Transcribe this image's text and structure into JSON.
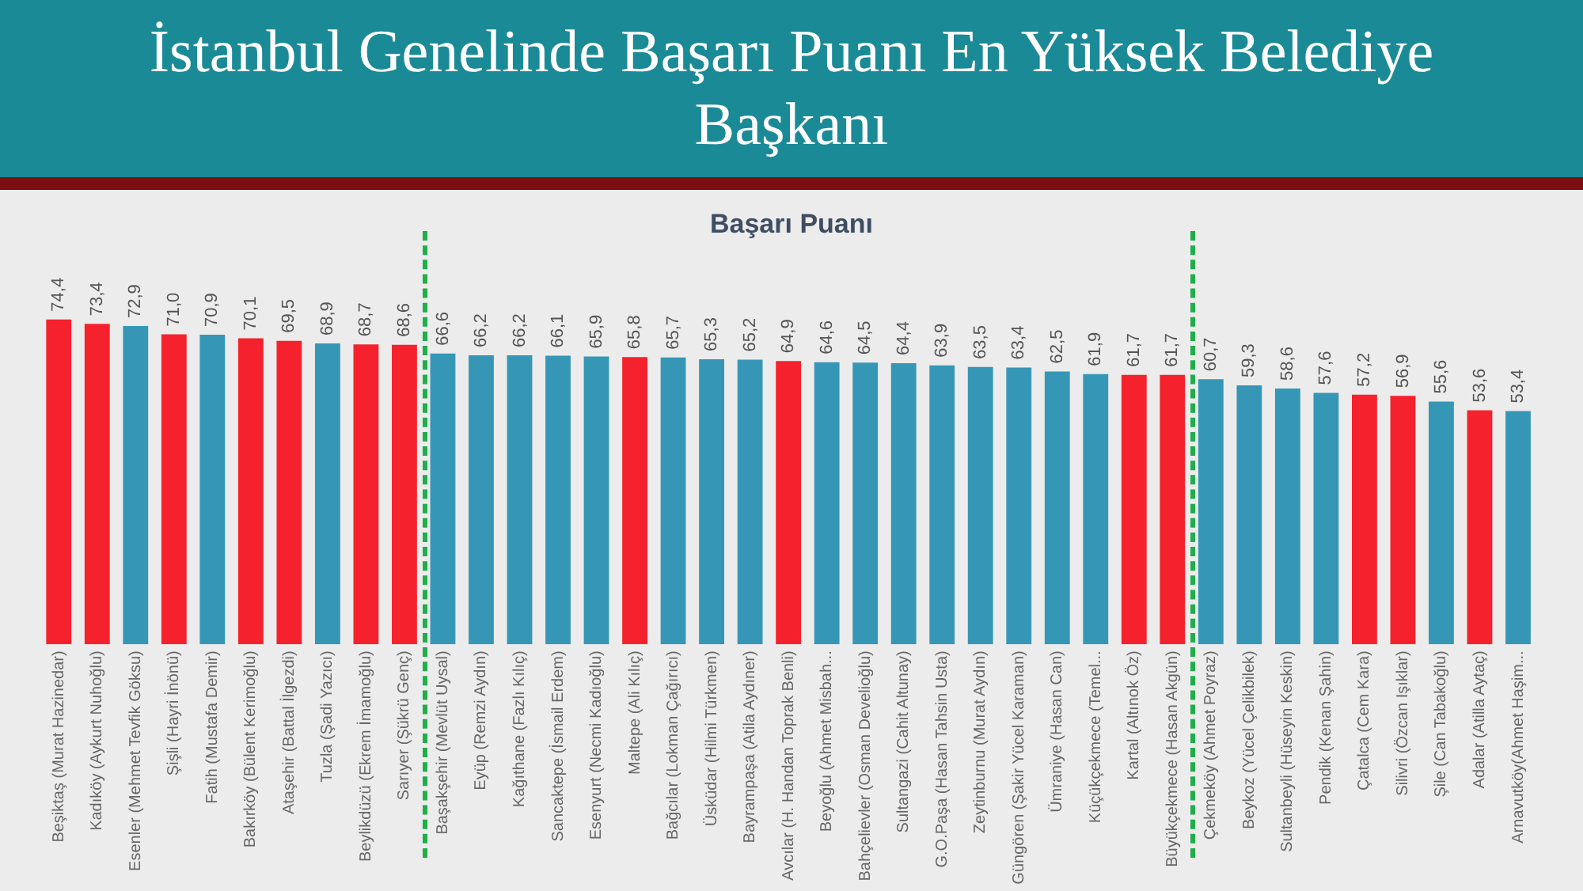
{
  "chart_data": {
    "type": "bar",
    "title": "İstanbul Genelinde Başarı Puanı En Yüksek Belediye Başkanı",
    "subtitle": "Başarı Puanı",
    "categories": [
      "Beşiktaş (Murat Hazinedar)",
      "Kadıköy (Aykurt Nuhoğlu)",
      "Esenler (Mehmet Tevfik Göksu)",
      "Şişli (Hayri İnönü)",
      "Fatih (Mustafa Demir)",
      "Bakırköy (Bülent Kerimoğlu)",
      "Ataşehir (Battal İlgezdi)",
      "Tuzla (Şadi Yazıcı)",
      "Beylikdüzü (Ekrem İmamoğlu)",
      "Sarıyer (Şükrü Genç)",
      "Başakşehir (Mevlüt Uysal)",
      "Eyüp (Remzi Aydın)",
      "Kağıthane (Fazlı Kılıç)",
      "Sancaktepe (İsmail Erdem)",
      "Esenyurt (Necmi Kadıoğlu)",
      "Maltepe (Ali Kılıç)",
      "Bağcılar (Lokman Çağırıcı)",
      "Üsküdar (Hilmi Türkmen)",
      "Bayrampaşa (Atila Aydıner)",
      "Avcılar (H. Handan Toprak Benli)",
      "Beyoğlu (Ahmet Misbah...",
      "Bahçelievler (Osman Develioğlu)",
      "Sultangazi (Cahit Altunay)",
      "G.O.Paşa (Hasan Tahsin Usta)",
      "Zeytinburnu (Murat Aydın)",
      "Güngören (Şakir Yücel Karaman)",
      "Ümraniye (Hasan Can)",
      "Küçükçekmece (Temel...",
      "Kartal (Altınok Öz)",
      "Büyükçekmece (Hasan Akgün)",
      "Çekmeköy (Ahmet Poyraz)",
      "Beykoz (Yücel Çelikbilek)",
      "Sultanbeyli (Hüseyin Keskin)",
      "Pendik (Kenan Şahin)",
      "Çatalca (Cem Kara)",
      "Silivri (Özcan Işıklar)",
      "Şile (Can Tabakoğlu)",
      "Adalar (Atilla Aytaç)",
      "Arnavutköy(Ahmet Haşim..."
    ],
    "values": [
      74.4,
      73.4,
      72.9,
      71.0,
      70.9,
      70.1,
      69.5,
      68.9,
      68.7,
      68.6,
      66.6,
      66.2,
      66.2,
      66.1,
      65.9,
      65.8,
      65.7,
      65.3,
      65.2,
      64.9,
      64.6,
      64.5,
      64.4,
      63.9,
      63.5,
      63.4,
      62.5,
      61.9,
      61.7,
      61.7,
      60.7,
      59.3,
      58.6,
      57.6,
      57.2,
      56.9,
      55.6,
      53.6,
      53.4
    ],
    "colors": [
      "#f5222d",
      "#f5222d",
      "#3597b5",
      "#f5222d",
      "#3597b5",
      "#f5222d",
      "#f5222d",
      "#3597b5",
      "#f5222d",
      "#f5222d",
      "#3597b5",
      "#3597b5",
      "#3597b5",
      "#3597b5",
      "#3597b5",
      "#f5222d",
      "#3597b5",
      "#3597b5",
      "#3597b5",
      "#f5222d",
      "#3597b5",
      "#3597b5",
      "#3597b5",
      "#3597b5",
      "#3597b5",
      "#3597b5",
      "#3597b5",
      "#3597b5",
      "#f5222d",
      "#f5222d",
      "#3597b5",
      "#3597b5",
      "#3597b5",
      "#3597b5",
      "#f5222d",
      "#f5222d",
      "#3597b5",
      "#f5222d",
      "#3597b5"
    ],
    "value_labels": [
      "74,4",
      "73,4",
      "72,9",
      "71,0",
      "70,9",
      "70,1",
      "69,5",
      "68,9",
      "68,7",
      "68,6",
      "66,6",
      "66,2",
      "66,2",
      "66,1",
      "65,9",
      "65,8",
      "65,7",
      "65,3",
      "65,2",
      "64,9",
      "64,6",
      "64,5",
      "64,4",
      "63,9",
      "63,5",
      "63,4",
      "62,5",
      "61,9",
      "61,7",
      "61,7",
      "60,7",
      "59,3",
      "58,6",
      "57,6",
      "57,2",
      "56,9",
      "55,6",
      "53,6",
      "53,4"
    ],
    "tick_labels": "x",
    "grid": false,
    "legend": false
  }
}
